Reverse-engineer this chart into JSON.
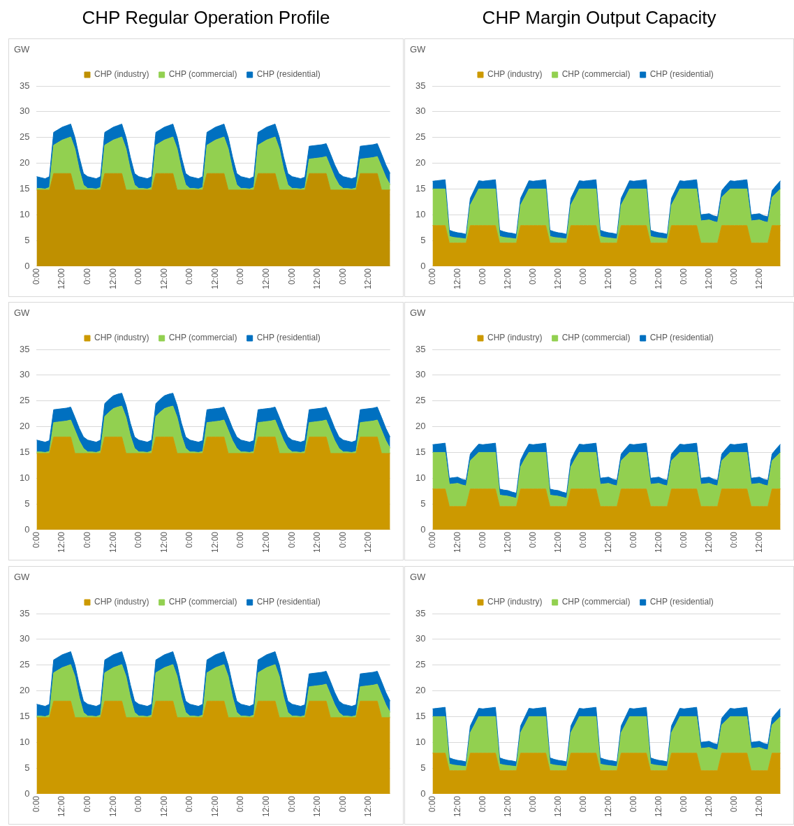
{
  "chart_data": [
    {
      "type": "area",
      "title": "CHP Regular Operation Profile",
      "ylabel": "GW",
      "stacked": true,
      "legend": "top",
      "grid": "y",
      "ylim": [
        0,
        35
      ],
      "yticks": [
        0,
        5,
        10,
        15,
        20,
        25,
        30,
        35
      ],
      "categories": [
        "0:00",
        null,
        null,
        null,
        null,
        null,
        "12:00",
        null,
        null,
        null,
        null,
        null,
        "0:00",
        null,
        null,
        null,
        null,
        null,
        "12:00",
        null,
        null,
        null,
        null,
        null,
        "0:00",
        null,
        null,
        null,
        null,
        null,
        "12:00",
        null,
        null,
        null,
        null,
        null,
        "0:00",
        null,
        null,
        null,
        null,
        null,
        "12:00",
        null,
        null,
        null,
        null,
        null,
        "0:00",
        null,
        null,
        null,
        null,
        null,
        "12:00",
        null,
        null,
        null,
        null,
        null,
        "0:00",
        null,
        null,
        null,
        null,
        null,
        "12:00",
        null,
        null,
        null,
        null,
        null,
        "0:00",
        null,
        null,
        null,
        null,
        null,
        "12:00",
        null,
        null,
        null,
        null,
        null
      ],
      "series": [
        {
          "name": "CHP (industry)",
          "color": "#bf9000",
          "values": [
            14.8,
            14.8,
            14.8,
            14.8,
            18,
            18,
            18,
            18,
            18,
            14.8,
            14.8,
            14.8,
            14.8,
            14.8,
            14.8,
            14.8,
            18,
            18,
            18,
            18,
            18,
            14.8,
            14.8,
            14.8,
            14.8,
            14.8,
            14.8,
            14.8,
            18,
            18,
            18,
            18,
            18,
            14.8,
            14.8,
            14.8,
            14.8,
            14.8,
            14.8,
            14.8,
            18,
            18,
            18,
            18,
            18,
            14.8,
            14.8,
            14.8,
            14.8,
            14.8,
            14.8,
            14.8,
            18,
            18,
            18,
            18,
            18,
            14.8,
            14.8,
            14.8,
            14.8,
            14.8,
            14.8,
            14.8,
            18,
            18,
            18,
            18,
            18,
            14.8,
            14.8,
            14.8,
            14.8,
            14.8,
            14.8,
            14.8,
            18,
            18,
            18,
            18,
            18,
            14.8,
            14.8,
            14.8
          ]
        },
        {
          "name": "CHP (commercial)",
          "color": "#92d050",
          "values": [
            0.3,
            0.3,
            0.2,
            0.5,
            5.5,
            6,
            6.5,
            6.8,
            7.1,
            8,
            4,
            1,
            0.3,
            0.3,
            0.2,
            0.5,
            5.5,
            6,
            6.5,
            6.8,
            7.1,
            8,
            4,
            1,
            0.3,
            0.3,
            0.2,
            0.5,
            5.5,
            6,
            6.5,
            6.8,
            7.1,
            8,
            4,
            1,
            0.3,
            0.3,
            0.2,
            0.5,
            5.5,
            6,
            6.5,
            6.8,
            7.1,
            8,
            4,
            1,
            0.3,
            0.3,
            0.2,
            0.5,
            5.5,
            6,
            6.5,
            6.8,
            7.1,
            8,
            4,
            1,
            0.3,
            0.3,
            0.2,
            0.4,
            2.8,
            2.9,
            3,
            3.1,
            3.3,
            4.5,
            2.5,
            1,
            0.3,
            0.3,
            0.2,
            0.4,
            2.8,
            2.9,
            3,
            3.1,
            3.3,
            4.5,
            2.5,
            1
          ]
        },
        {
          "name": "CHP (residential)",
          "color": "#0070c0",
          "values": [
            2.3,
            2.1,
            2,
            2.1,
            2.5,
            2.5,
            2.5,
            2.5,
            2.5,
            2.2,
            2.4,
            2.2,
            2.3,
            2.1,
            2,
            2.1,
            2.5,
            2.5,
            2.5,
            2.5,
            2.5,
            2.2,
            2.4,
            2.2,
            2.3,
            2.1,
            2,
            2.1,
            2.5,
            2.5,
            2.5,
            2.5,
            2.5,
            2.2,
            2.4,
            2.2,
            2.3,
            2.1,
            2,
            2.1,
            2.5,
            2.5,
            2.5,
            2.5,
            2.5,
            2.2,
            2.4,
            2.2,
            2.3,
            2.1,
            2,
            2.1,
            2.5,
            2.5,
            2.5,
            2.5,
            2.5,
            2.2,
            2.4,
            2.2,
            2.3,
            2.1,
            2,
            2.1,
            2.5,
            2.5,
            2.5,
            2.5,
            2.5,
            2.5,
            2.4,
            2.2,
            2.3,
            2.1,
            2,
            2.1,
            2.5,
            2.5,
            2.5,
            2.5,
            2.5,
            2.5,
            2.4,
            2.2
          ]
        }
      ]
    },
    {
      "type": "area",
      "title": "CHP Margin Output Capacity",
      "ylabel": "GW",
      "stacked": true,
      "legend": "top",
      "grid": "y",
      "ylim": [
        0,
        35
      ],
      "yticks": [
        0,
        5,
        10,
        15,
        20,
        25,
        30,
        35
      ],
      "categories": [
        "0:00",
        null,
        null,
        null,
        null,
        null,
        "12:00",
        null,
        null,
        null,
        null,
        null,
        "0:00",
        null,
        null,
        null,
        null,
        null,
        "12:00",
        null,
        null,
        null,
        null,
        null,
        "0:00",
        null,
        null,
        null,
        null,
        null,
        "12:00",
        null,
        null,
        null,
        null,
        null,
        "0:00",
        null,
        null,
        null,
        null,
        null,
        "12:00",
        null,
        null,
        null,
        null,
        null,
        "0:00",
        null,
        null,
        null,
        null,
        null,
        "12:00",
        null,
        null,
        null,
        null,
        null,
        "0:00",
        null,
        null,
        null,
        null,
        null,
        "12:00",
        null,
        null,
        null,
        null,
        null,
        "0:00",
        null,
        null,
        null,
        null,
        null,
        "12:00",
        null,
        null,
        null,
        null,
        null
      ],
      "series": [
        {
          "name": "CHP (industry)",
          "color": "#cc9900",
          "values": [
            7.9,
            7.9,
            7.9,
            7.9,
            4.5,
            4.5,
            4.5,
            4.5,
            4.5,
            7.9,
            7.9,
            7.9,
            7.9,
            7.9,
            7.9,
            7.9,
            4.5,
            4.5,
            4.5,
            4.5,
            4.5,
            7.9,
            7.9,
            7.9,
            7.9,
            7.9,
            7.9,
            7.9,
            4.5,
            4.5,
            4.5,
            4.5,
            4.5,
            7.9,
            7.9,
            7.9,
            7.9,
            7.9,
            7.9,
            7.9,
            4.5,
            4.5,
            4.5,
            4.5,
            4.5,
            7.9,
            7.9,
            7.9,
            7.9,
            7.9,
            7.9,
            7.9,
            4.5,
            4.5,
            4.5,
            4.5,
            4.5,
            7.9,
            7.9,
            7.9,
            7.9,
            7.9,
            7.9,
            7.9,
            4.5,
            4.5,
            4.5,
            4.5,
            4.5,
            7.9,
            7.9,
            7.9,
            7.9,
            7.9,
            7.9,
            7.9,
            4.5,
            4.5,
            4.5,
            4.5,
            4.5,
            7.9,
            7.9,
            7.9
          ]
        },
        {
          "name": "CHP (commercial)",
          "color": "#92d050",
          "values": [
            7.1,
            7.1,
            7.1,
            7.1,
            1.3,
            1.1,
            1,
            0.9,
            0.8,
            4,
            5.5,
            7.1,
            7.1,
            7.1,
            7.1,
            7.1,
            1.3,
            1.1,
            1,
            0.9,
            0.8,
            4,
            5.5,
            7.1,
            7.1,
            7.1,
            7.1,
            7.1,
            1.3,
            1.1,
            1,
            0.9,
            0.8,
            4,
            5.5,
            7.1,
            7.1,
            7.1,
            7.1,
            7.1,
            1.3,
            1.1,
            1,
            0.9,
            0.8,
            4,
            5.5,
            7.1,
            7.1,
            7.1,
            7.1,
            7.1,
            1.3,
            1.1,
            1,
            0.9,
            0.8,
            4,
            5.5,
            7.1,
            7.1,
            7.1,
            7.1,
            7.1,
            4.3,
            4.4,
            4.5,
            4.2,
            4,
            5.5,
            6.3,
            7.1,
            7.1,
            7.1,
            7.1,
            7.1,
            4.3,
            4.4,
            4.5,
            4.2,
            4,
            5.5,
            6.3,
            7.1
          ]
        },
        {
          "name": "CHP (residential)",
          "color": "#0070c0",
          "values": [
            1.5,
            1.6,
            1.7,
            1.8,
            1.2,
            1.1,
            1,
            1,
            0.9,
            1.3,
            1.5,
            1.6,
            1.5,
            1.6,
            1.7,
            1.8,
            1.2,
            1.1,
            1,
            1,
            0.9,
            1.3,
            1.5,
            1.6,
            1.5,
            1.6,
            1.7,
            1.8,
            1.2,
            1.1,
            1,
            1,
            0.9,
            1.3,
            1.5,
            1.6,
            1.5,
            1.6,
            1.7,
            1.8,
            1.2,
            1.1,
            1,
            1,
            0.9,
            1.3,
            1.5,
            1.6,
            1.5,
            1.6,
            1.7,
            1.8,
            1.2,
            1.1,
            1,
            1,
            0.9,
            1.3,
            1.5,
            1.6,
            1.5,
            1.6,
            1.7,
            1.8,
            1.2,
            1.2,
            1.2,
            1.1,
            1.1,
            1.3,
            1.5,
            1.6,
            1.5,
            1.6,
            1.7,
            1.8,
            1.2,
            1.2,
            1.2,
            1.1,
            1.1,
            1.3,
            1.5,
            1.6
          ]
        }
      ]
    },
    {
      "type": "area",
      "ylabel": "GW",
      "stacked": true,
      "legend": "top",
      "grid": "y",
      "ylim": [
        0,
        35
      ],
      "yticks": [
        0,
        5,
        10,
        15,
        20,
        25,
        30,
        35
      ],
      "categories": [
        "0:00",
        null,
        null,
        null,
        null,
        null,
        "12:00",
        null,
        null,
        null,
        null,
        null,
        "0:00",
        null,
        null,
        null,
        null,
        null,
        "12:00",
        null,
        null,
        null,
        null,
        null,
        "0:00",
        null,
        null,
        null,
        null,
        null,
        "12:00",
        null,
        null,
        null,
        null,
        null,
        "0:00",
        null,
        null,
        null,
        null,
        null,
        "12:00",
        null,
        null,
        null,
        null,
        null,
        "0:00",
        null,
        null,
        null,
        null,
        null,
        "12:00",
        null,
        null,
        null,
        null,
        null,
        "0:00",
        null,
        null,
        null,
        null,
        null,
        "12:00",
        null,
        null,
        null,
        null,
        null,
        "0:00",
        null,
        null,
        null,
        null,
        null,
        "12:00",
        null,
        null,
        null,
        null,
        null
      ],
      "series": [
        {
          "name": "CHP (industry)",
          "color": "#cc9900",
          "values": [
            14.8,
            14.8,
            14.8,
            14.8,
            18,
            18,
            18,
            18,
            18,
            14.8,
            14.8,
            14.8,
            14.8,
            14.8,
            14.8,
            14.8,
            18,
            18,
            18,
            18,
            18,
            14.8,
            14.8,
            14.8,
            14.8,
            14.8,
            14.8,
            14.8,
            18,
            18,
            18,
            18,
            18,
            14.8,
            14.8,
            14.8,
            14.8,
            14.8,
            14.8,
            14.8,
            18,
            18,
            18,
            18,
            18,
            14.8,
            14.8,
            14.8,
            14.8,
            14.8,
            14.8,
            14.8,
            18,
            18,
            18,
            18,
            18,
            14.8,
            14.8,
            14.8,
            14.8,
            14.8,
            14.8,
            14.8,
            18,
            18,
            18,
            18,
            18,
            14.8,
            14.8,
            14.8,
            14.8,
            14.8,
            14.8,
            14.8,
            18,
            18,
            18,
            18,
            18,
            14.8,
            14.8,
            14.8
          ]
        },
        {
          "name": "CHP (commercial)",
          "color": "#92d050",
          "values": [
            0.3,
            0.3,
            0.2,
            0.4,
            2.8,
            2.9,
            3,
            3.1,
            3.3,
            4.5,
            2.5,
            1,
            0.3,
            0.3,
            0.2,
            0.5,
            4,
            4.8,
            5.5,
            5.8,
            6,
            7,
            3.5,
            1,
            0.3,
            0.3,
            0.2,
            0.5,
            4,
            4.8,
            5.5,
            5.8,
            6,
            7,
            3.5,
            1,
            0.3,
            0.3,
            0.2,
            0.4,
            2.8,
            2.9,
            3,
            3.1,
            3.3,
            4.5,
            2.5,
            1,
            0.3,
            0.3,
            0.2,
            0.4,
            2.8,
            2.9,
            3,
            3.1,
            3.3,
            4.5,
            2.5,
            1,
            0.3,
            0.3,
            0.2,
            0.4,
            2.8,
            2.9,
            3,
            3.1,
            3.3,
            4.5,
            2.5,
            1,
            0.3,
            0.3,
            0.2,
            0.4,
            2.8,
            2.9,
            3,
            3.1,
            3.3,
            4.5,
            2.5,
            1
          ]
        },
        {
          "name": "CHP (residential)",
          "color": "#0070c0",
          "values": [
            2.3,
            2.1,
            2,
            2.1,
            2.5,
            2.5,
            2.5,
            2.5,
            2.5,
            2.5,
            2.4,
            2.2,
            2.3,
            2.1,
            2,
            2.1,
            2.5,
            2.5,
            2.5,
            2.5,
            2.5,
            2.3,
            2.4,
            2.2,
            2.3,
            2.1,
            2,
            2.1,
            2.5,
            2.5,
            2.5,
            2.5,
            2.5,
            2.3,
            2.4,
            2.2,
            2.3,
            2.1,
            2,
            2.1,
            2.5,
            2.5,
            2.5,
            2.5,
            2.5,
            2.5,
            2.4,
            2.2,
            2.3,
            2.1,
            2,
            2.1,
            2.5,
            2.5,
            2.5,
            2.5,
            2.5,
            2.5,
            2.4,
            2.2,
            2.3,
            2.1,
            2,
            2.1,
            2.5,
            2.5,
            2.5,
            2.5,
            2.5,
            2.5,
            2.4,
            2.2,
            2.3,
            2.1,
            2,
            2.1,
            2.5,
            2.5,
            2.5,
            2.5,
            2.5,
            2.5,
            2.4,
            2.2
          ]
        }
      ]
    },
    {
      "type": "area",
      "ylabel": "GW",
      "stacked": true,
      "legend": "top",
      "grid": "y",
      "ylim": [
        0,
        35
      ],
      "yticks": [
        0,
        5,
        10,
        15,
        20,
        25,
        30,
        35
      ],
      "categories": [
        "0:00",
        null,
        null,
        null,
        null,
        null,
        "12:00",
        null,
        null,
        null,
        null,
        null,
        "0:00",
        null,
        null,
        null,
        null,
        null,
        "12:00",
        null,
        null,
        null,
        null,
        null,
        "0:00",
        null,
        null,
        null,
        null,
        null,
        "12:00",
        null,
        null,
        null,
        null,
        null,
        "0:00",
        null,
        null,
        null,
        null,
        null,
        "12:00",
        null,
        null,
        null,
        null,
        null,
        "0:00",
        null,
        null,
        null,
        null,
        null,
        "12:00",
        null,
        null,
        null,
        null,
        null,
        "0:00",
        null,
        null,
        null,
        null,
        null,
        "12:00",
        null,
        null,
        null,
        null,
        null,
        "0:00",
        null,
        null,
        null,
        null,
        null,
        "12:00",
        null,
        null,
        null,
        null,
        null
      ],
      "series": [
        {
          "name": "CHP (industry)",
          "color": "#cc9900",
          "values": [
            7.9,
            7.9,
            7.9,
            7.9,
            4.5,
            4.5,
            4.5,
            4.5,
            4.5,
            7.9,
            7.9,
            7.9,
            7.9,
            7.9,
            7.9,
            7.9,
            4.5,
            4.5,
            4.5,
            4.5,
            4.5,
            7.9,
            7.9,
            7.9,
            7.9,
            7.9,
            7.9,
            7.9,
            4.5,
            4.5,
            4.5,
            4.5,
            4.5,
            7.9,
            7.9,
            7.9,
            7.9,
            7.9,
            7.9,
            7.9,
            4.5,
            4.5,
            4.5,
            4.5,
            4.5,
            7.9,
            7.9,
            7.9,
            7.9,
            7.9,
            7.9,
            7.9,
            4.5,
            4.5,
            4.5,
            4.5,
            4.5,
            7.9,
            7.9,
            7.9,
            7.9,
            7.9,
            7.9,
            7.9,
            4.5,
            4.5,
            4.5,
            4.5,
            4.5,
            7.9,
            7.9,
            7.9,
            7.9,
            7.9,
            7.9,
            7.9,
            4.5,
            4.5,
            4.5,
            4.5,
            4.5,
            7.9,
            7.9,
            7.9
          ]
        },
        {
          "name": "CHP (commercial)",
          "color": "#92d050",
          "values": [
            7.1,
            7.1,
            7.1,
            7.1,
            4.3,
            4.4,
            4.5,
            4.2,
            4,
            5.5,
            6.3,
            7.1,
            7.1,
            7.1,
            7.1,
            7.1,
            2.2,
            2.1,
            2,
            1.8,
            1.6,
            4.3,
            5.8,
            7.1,
            7.1,
            7.1,
            7.1,
            7.1,
            2.2,
            2.1,
            2,
            1.8,
            1.6,
            4.3,
            5.8,
            7.1,
            7.1,
            7.1,
            7.1,
            7.1,
            4.3,
            4.4,
            4.5,
            4.2,
            4,
            5.5,
            6.3,
            7.1,
            7.1,
            7.1,
            7.1,
            7.1,
            4.3,
            4.4,
            4.5,
            4.2,
            4,
            5.5,
            6.3,
            7.1,
            7.1,
            7.1,
            7.1,
            7.1,
            4.3,
            4.4,
            4.5,
            4.2,
            4,
            5.5,
            6.3,
            7.1,
            7.1,
            7.1,
            7.1,
            7.1,
            4.3,
            4.4,
            4.5,
            4.2,
            4,
            5.5,
            6.3,
            7.1
          ]
        },
        {
          "name": "CHP (residential)",
          "color": "#0070c0",
          "values": [
            1.5,
            1.6,
            1.7,
            1.8,
            1.2,
            1.2,
            1.2,
            1.1,
            1.1,
            1.3,
            1.5,
            1.6,
            1.5,
            1.6,
            1.7,
            1.8,
            1.2,
            1.1,
            1.1,
            1,
            1,
            1.3,
            1.5,
            1.6,
            1.5,
            1.6,
            1.7,
            1.8,
            1.2,
            1.1,
            1.1,
            1,
            1,
            1.3,
            1.5,
            1.6,
            1.5,
            1.6,
            1.7,
            1.8,
            1.2,
            1.2,
            1.2,
            1.1,
            1.1,
            1.3,
            1.5,
            1.6,
            1.5,
            1.6,
            1.7,
            1.8,
            1.2,
            1.2,
            1.2,
            1.1,
            1.1,
            1.3,
            1.5,
            1.6,
            1.5,
            1.6,
            1.7,
            1.8,
            1.2,
            1.2,
            1.2,
            1.1,
            1.1,
            1.3,
            1.5,
            1.6,
            1.5,
            1.6,
            1.7,
            1.8,
            1.2,
            1.2,
            1.2,
            1.1,
            1.1,
            1.3,
            1.5,
            1.6
          ]
        }
      ]
    },
    {
      "type": "area",
      "ylabel": "GW",
      "stacked": true,
      "legend": "top",
      "grid": "y",
      "ylim": [
        0,
        35
      ],
      "yticks": [
        0,
        5,
        10,
        15,
        20,
        25,
        30,
        35
      ],
      "categories": [
        "0:00",
        null,
        null,
        null,
        null,
        null,
        "12:00",
        null,
        null,
        null,
        null,
        null,
        "0:00",
        null,
        null,
        null,
        null,
        null,
        "12:00",
        null,
        null,
        null,
        null,
        null,
        "0:00",
        null,
        null,
        null,
        null,
        null,
        "12:00",
        null,
        null,
        null,
        null,
        null,
        "0:00",
        null,
        null,
        null,
        null,
        null,
        "12:00",
        null,
        null,
        null,
        null,
        null,
        "0:00",
        null,
        null,
        null,
        null,
        null,
        "12:00",
        null,
        null,
        null,
        null,
        null,
        "0:00",
        null,
        null,
        null,
        null,
        null,
        "12:00",
        null,
        null,
        null,
        null,
        null,
        "0:00",
        null,
        null,
        null,
        null,
        null,
        "12:00",
        null,
        null,
        null,
        null,
        null
      ],
      "series": [
        {
          "name": "CHP (industry)",
          "color": "#cc9900",
          "values": [
            14.8,
            14.8,
            14.8,
            14.8,
            18,
            18,
            18,
            18,
            18,
            14.8,
            14.8,
            14.8,
            14.8,
            14.8,
            14.8,
            14.8,
            18,
            18,
            18,
            18,
            18,
            14.8,
            14.8,
            14.8,
            14.8,
            14.8,
            14.8,
            14.8,
            18,
            18,
            18,
            18,
            18,
            14.8,
            14.8,
            14.8,
            14.8,
            14.8,
            14.8,
            14.8,
            18,
            18,
            18,
            18,
            18,
            14.8,
            14.8,
            14.8,
            14.8,
            14.8,
            14.8,
            14.8,
            18,
            18,
            18,
            18,
            18,
            14.8,
            14.8,
            14.8,
            14.8,
            14.8,
            14.8,
            14.8,
            18,
            18,
            18,
            18,
            18,
            14.8,
            14.8,
            14.8,
            14.8,
            14.8,
            14.8,
            14.8,
            18,
            18,
            18,
            18,
            18,
            14.8,
            14.8,
            14.8
          ]
        },
        {
          "name": "CHP (commercial)",
          "color": "#92d050",
          "values": [
            0.3,
            0.3,
            0.2,
            0.5,
            5.5,
            6,
            6.5,
            6.8,
            7.1,
            8,
            4,
            1,
            0.3,
            0.3,
            0.2,
            0.5,
            5.5,
            6,
            6.5,
            6.8,
            7.1,
            8,
            4,
            1,
            0.3,
            0.3,
            0.2,
            0.5,
            5.5,
            6,
            6.5,
            6.8,
            7.1,
            8,
            4,
            1,
            0.3,
            0.3,
            0.2,
            0.5,
            5.5,
            6,
            6.5,
            6.8,
            7.1,
            8,
            4,
            1,
            0.3,
            0.3,
            0.2,
            0.5,
            5.5,
            6,
            6.5,
            6.8,
            7.1,
            8,
            4,
            1,
            0.3,
            0.3,
            0.2,
            0.4,
            2.8,
            2.9,
            3,
            3.1,
            3.3,
            4.5,
            2.5,
            1,
            0.3,
            0.3,
            0.2,
            0.4,
            2.8,
            2.9,
            3,
            3.1,
            3.3,
            4.5,
            2.5,
            1
          ]
        },
        {
          "name": "CHP (residential)",
          "color": "#0070c0",
          "values": [
            2.3,
            2.1,
            2,
            2.1,
            2.5,
            2.5,
            2.5,
            2.5,
            2.5,
            2.2,
            2.4,
            2.2,
            2.3,
            2.1,
            2,
            2.1,
            2.5,
            2.5,
            2.5,
            2.5,
            2.5,
            2.2,
            2.4,
            2.2,
            2.3,
            2.1,
            2,
            2.1,
            2.5,
            2.5,
            2.5,
            2.5,
            2.5,
            2.2,
            2.4,
            2.2,
            2.3,
            2.1,
            2,
            2.1,
            2.5,
            2.5,
            2.5,
            2.5,
            2.5,
            2.2,
            2.4,
            2.2,
            2.3,
            2.1,
            2,
            2.1,
            2.5,
            2.5,
            2.5,
            2.5,
            2.5,
            2.2,
            2.4,
            2.2,
            2.3,
            2.1,
            2,
            2.1,
            2.5,
            2.5,
            2.5,
            2.5,
            2.5,
            2.5,
            2.4,
            2.2,
            2.3,
            2.1,
            2,
            2.1,
            2.5,
            2.5,
            2.5,
            2.5,
            2.5,
            2.5,
            2.4,
            2.2
          ]
        }
      ]
    },
    {
      "type": "area",
      "ylabel": "GW",
      "stacked": true,
      "legend": "top",
      "grid": "y",
      "ylim": [
        0,
        35
      ],
      "yticks": [
        0,
        5,
        10,
        15,
        20,
        25,
        30,
        35
      ],
      "categories": [
        "0:00",
        null,
        null,
        null,
        null,
        null,
        "12:00",
        null,
        null,
        null,
        null,
        null,
        "0:00",
        null,
        null,
        null,
        null,
        null,
        "12:00",
        null,
        null,
        null,
        null,
        null,
        "0:00",
        null,
        null,
        null,
        null,
        null,
        "12:00",
        null,
        null,
        null,
        null,
        null,
        "0:00",
        null,
        null,
        null,
        null,
        null,
        "12:00",
        null,
        null,
        null,
        null,
        null,
        "0:00",
        null,
        null,
        null,
        null,
        null,
        "12:00",
        null,
        null,
        null,
        null,
        null,
        "0:00",
        null,
        null,
        null,
        null,
        null,
        "12:00",
        null,
        null,
        null,
        null,
        null,
        "0:00",
        null,
        null,
        null,
        null,
        null,
        "12:00",
        null,
        null,
        null,
        null,
        null
      ],
      "series": [
        {
          "name": "CHP (industry)",
          "color": "#cc9900",
          "values": [
            7.9,
            7.9,
            7.9,
            7.9,
            4.5,
            4.5,
            4.5,
            4.5,
            4.5,
            7.9,
            7.9,
            7.9,
            7.9,
            7.9,
            7.9,
            7.9,
            4.5,
            4.5,
            4.5,
            4.5,
            4.5,
            7.9,
            7.9,
            7.9,
            7.9,
            7.9,
            7.9,
            7.9,
            4.5,
            4.5,
            4.5,
            4.5,
            4.5,
            7.9,
            7.9,
            7.9,
            7.9,
            7.9,
            7.9,
            7.9,
            4.5,
            4.5,
            4.5,
            4.5,
            4.5,
            7.9,
            7.9,
            7.9,
            7.9,
            7.9,
            7.9,
            7.9,
            4.5,
            4.5,
            4.5,
            4.5,
            4.5,
            7.9,
            7.9,
            7.9,
            7.9,
            7.9,
            7.9,
            7.9,
            4.5,
            4.5,
            4.5,
            4.5,
            4.5,
            7.9,
            7.9,
            7.9,
            7.9,
            7.9,
            7.9,
            7.9,
            4.5,
            4.5,
            4.5,
            4.5,
            4.5,
            7.9,
            7.9,
            7.9
          ]
        },
        {
          "name": "CHP (commercial)",
          "color": "#92d050",
          "values": [
            7.1,
            7.1,
            7.1,
            7.1,
            1.3,
            1.1,
            1,
            0.9,
            0.8,
            4,
            5.5,
            7.1,
            7.1,
            7.1,
            7.1,
            7.1,
            1.3,
            1.1,
            1,
            0.9,
            0.8,
            4,
            5.5,
            7.1,
            7.1,
            7.1,
            7.1,
            7.1,
            1.3,
            1.1,
            1,
            0.9,
            0.8,
            4,
            5.5,
            7.1,
            7.1,
            7.1,
            7.1,
            7.1,
            1.3,
            1.1,
            1,
            0.9,
            0.8,
            4,
            5.5,
            7.1,
            7.1,
            7.1,
            7.1,
            7.1,
            1.3,
            1.1,
            1,
            0.9,
            0.8,
            4,
            5.5,
            7.1,
            7.1,
            7.1,
            7.1,
            7.1,
            4.3,
            4.4,
            4.5,
            4.2,
            4,
            5.5,
            6.3,
            7.1,
            7.1,
            7.1,
            7.1,
            7.1,
            4.3,
            4.4,
            4.5,
            4.2,
            4,
            5.5,
            6.3,
            7.1
          ]
        },
        {
          "name": "CHP (residential)",
          "color": "#0070c0",
          "values": [
            1.5,
            1.6,
            1.7,
            1.8,
            1.2,
            1.1,
            1,
            1,
            0.9,
            1.3,
            1.5,
            1.6,
            1.5,
            1.6,
            1.7,
            1.8,
            1.2,
            1.1,
            1,
            1,
            0.9,
            1.3,
            1.5,
            1.6,
            1.5,
            1.6,
            1.7,
            1.8,
            1.2,
            1.1,
            1,
            1,
            0.9,
            1.3,
            1.5,
            1.6,
            1.5,
            1.6,
            1.7,
            1.8,
            1.2,
            1.1,
            1,
            1,
            0.9,
            1.3,
            1.5,
            1.6,
            1.5,
            1.6,
            1.7,
            1.8,
            1.2,
            1.1,
            1,
            1,
            0.9,
            1.3,
            1.5,
            1.6,
            1.5,
            1.6,
            1.7,
            1.8,
            1.2,
            1.2,
            1.2,
            1.1,
            1.1,
            1.3,
            1.5,
            1.6,
            1.5,
            1.6,
            1.7,
            1.8,
            1.2,
            1.2,
            1.2,
            1.1,
            1.1,
            1.3,
            1.5,
            1.6
          ]
        }
      ]
    }
  ]
}
